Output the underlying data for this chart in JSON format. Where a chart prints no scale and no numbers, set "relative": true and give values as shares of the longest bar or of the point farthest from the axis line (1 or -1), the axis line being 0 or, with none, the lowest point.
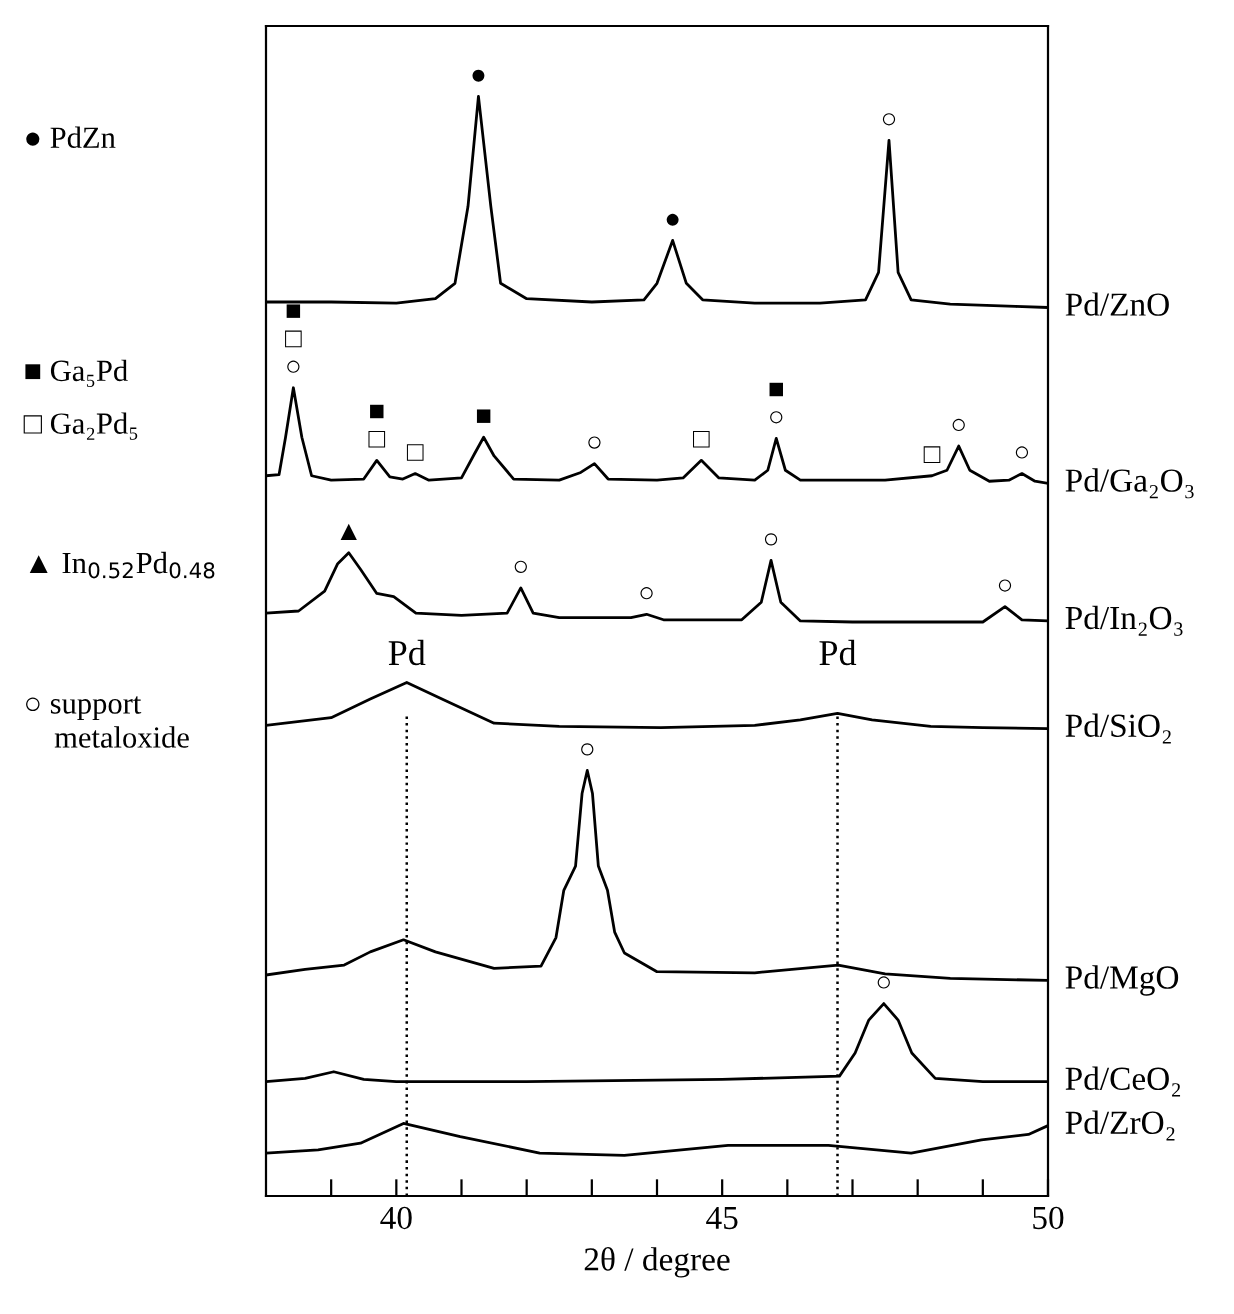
{
  "chart_data": {
    "type": "line",
    "relative": true,
    "xlabel": "2θ / degree",
    "xlim": [
      38,
      50
    ],
    "xticks": [
      {
        "value": 39,
        "label": null
      },
      40,
      {
        "value": 41,
        "label": null
      },
      {
        "value": 42,
        "label": null
      },
      {
        "value": 43,
        "label": null
      },
      {
        "value": 44,
        "label": null
      },
      45,
      {
        "value": 46,
        "label": null
      },
      {
        "value": 47,
        "label": null
      },
      {
        "value": 48,
        "label": null
      },
      {
        "value": 49,
        "label": null
      },
      50
    ],
    "tick_labels": "x",
    "grid": false,
    "legend": false,
    "marker": "none",
    "line_style": "solid",
    "series": [
      {
        "name": "Pd/ZnO",
        "color": "#000000",
        "x": [
          38,
          39,
          40,
          40.6,
          40.9,
          41.1,
          41.26,
          41.45,
          41.6,
          42,
          43,
          43.8,
          44.0,
          44.24,
          44.45,
          44.7,
          45.5,
          46.5,
          47.2,
          47.4,
          47.56,
          47.7,
          47.9,
          48.5,
          49.5,
          50
        ],
        "values": [
          0.813,
          0.813,
          0.812,
          0.816,
          0.83,
          0.9,
          1.0,
          0.9,
          0.83,
          0.816,
          0.813,
          0.815,
          0.83,
          0.869,
          0.83,
          0.815,
          0.812,
          0.812,
          0.815,
          0.84,
          0.96,
          0.84,
          0.815,
          0.811,
          0.809,
          0.808
        ]
      },
      {
        "name": "Pd/Ga₂O₃",
        "color": "#000000",
        "x": [
          38,
          38.2,
          38.3,
          38.42,
          38.55,
          38.7,
          39.0,
          39.5,
          39.7,
          39.9,
          40.1,
          40.29,
          40.5,
          41.0,
          41.2,
          41.34,
          41.5,
          41.8,
          42.5,
          42.83,
          43.04,
          43.25,
          44.0,
          44.4,
          44.68,
          44.95,
          45.5,
          45.7,
          45.83,
          45.97,
          46.2,
          47.5,
          48.22,
          48.45,
          48.63,
          48.8,
          49.1,
          49.4,
          49.6,
          49.8,
          50
        ],
        "values": [
          0.655,
          0.656,
          0.69,
          0.735,
          0.69,
          0.655,
          0.651,
          0.652,
          0.669,
          0.654,
          0.652,
          0.657,
          0.651,
          0.653,
          0.675,
          0.69,
          0.673,
          0.652,
          0.651,
          0.658,
          0.666,
          0.652,
          0.651,
          0.653,
          0.669,
          0.653,
          0.651,
          0.66,
          0.689,
          0.66,
          0.651,
          0.651,
          0.655,
          0.66,
          0.682,
          0.66,
          0.65,
          0.651,
          0.657,
          0.65,
          0.648
        ]
      },
      {
        "name": "Pd/In₂O₃",
        "color": "#000000",
        "x": [
          38,
          38.5,
          38.9,
          39.1,
          39.27,
          39.45,
          39.7,
          39.96,
          40.3,
          41.0,
          41.7,
          41.91,
          42.1,
          42.5,
          43.6,
          43.84,
          44.1,
          45.3,
          45.6,
          45.75,
          45.9,
          46.2,
          47.0,
          49.0,
          49.34,
          49.6,
          50
        ],
        "values": [
          0.53,
          0.532,
          0.55,
          0.575,
          0.585,
          0.57,
          0.548,
          0.545,
          0.53,
          0.528,
          0.53,
          0.553,
          0.53,
          0.526,
          0.526,
          0.529,
          0.524,
          0.524,
          0.54,
          0.578,
          0.54,
          0.523,
          0.522,
          0.522,
          0.536,
          0.524,
          0.523
        ]
      },
      {
        "name": "Pd/SiO₂",
        "color": "#000000",
        "x": [
          38,
          39,
          39.6,
          40.16,
          40.7,
          41.5,
          42.5,
          44.06,
          45.5,
          46.2,
          46.77,
          47.3,
          48.2,
          49,
          50
        ],
        "values": [
          0.428,
          0.435,
          0.452,
          0.467,
          0.452,
          0.43,
          0.427,
          0.426,
          0.428,
          0.433,
          0.439,
          0.433,
          0.427,
          0.426,
          0.425
        ]
      },
      {
        "name": "Pd/MgO",
        "color": "#000000",
        "x": [
          38,
          38.6,
          39.2,
          39.6,
          40.11,
          40.6,
          41.5,
          42.22,
          42.45,
          42.57,
          42.75,
          42.85,
          42.93,
          43.01,
          43.1,
          43.24,
          43.35,
          43.5,
          44.0,
          45.5,
          46.78,
          47.5,
          48.5,
          50
        ],
        "values": [
          0.201,
          0.206,
          0.21,
          0.222,
          0.233,
          0.222,
          0.207,
          0.209,
          0.235,
          0.278,
          0.3,
          0.366,
          0.387,
          0.366,
          0.3,
          0.278,
          0.24,
          0.221,
          0.204,
          0.203,
          0.21,
          0.202,
          0.198,
          0.196
        ]
      },
      {
        "name": "Pd/CeO₂",
        "color": "#000000",
        "x": [
          38,
          38.6,
          39.04,
          39.5,
          40,
          42,
          45,
          46.8,
          47.04,
          47.25,
          47.48,
          47.7,
          47.91,
          48.27,
          49,
          50
        ],
        "values": [
          0.104,
          0.107,
          0.113,
          0.106,
          0.104,
          0.104,
          0.106,
          0.109,
          0.13,
          0.16,
          0.175,
          0.16,
          0.13,
          0.107,
          0.104,
          0.104
        ]
      },
      {
        "name": "Pd/ZrO₂",
        "color": "#000000",
        "x": [
          38,
          38.8,
          39.45,
          40.11,
          40.98,
          42.2,
          43.5,
          45.09,
          46.63,
          47.9,
          48.98,
          49.7,
          50
        ],
        "values": [
          0.039,
          0.042,
          0.048,
          0.066,
          0.054,
          0.039,
          0.037,
          0.046,
          0.046,
          0.039,
          0.051,
          0.056,
          0.064
        ]
      }
    ],
    "ref_lines": [
      {
        "axis": "x",
        "value": 40.16,
        "label": "Pd",
        "color": "#000000",
        "line_style": "dotted"
      },
      {
        "axis": "x",
        "value": 46.77,
        "label": "Pd",
        "color": "#000000",
        "line_style": "dotted"
      }
    ],
    "annotations": [
      "● PdZn",
      "■ Ga₅Pd",
      "□ Ga₂Pd₅",
      "▲ In$_{0.52}$Pd$_{0.48}$",
      "○ support\n    metaloxide",
      {
        "text": "●",
        "x": 41.26,
        "y": 1.0
      },
      {
        "text": "●",
        "x": 44.24,
        "y": 0.869
      },
      {
        "text": "○",
        "x": 47.56,
        "y": 0.96
      },
      {
        "text": "○",
        "x": 38.42,
        "y": 0.735
      },
      {
        "text": "□",
        "x": 38.42,
        "y": 0.735
      },
      {
        "text": "■",
        "x": 38.42,
        "y": 0.735
      },
      {
        "text": "□",
        "x": 39.7,
        "y": 0.669
      },
      {
        "text": "■",
        "x": 39.7,
        "y": 0.669
      },
      {
        "text": "□",
        "x": 40.29,
        "y": 0.657
      },
      {
        "text": "■",
        "x": 41.34,
        "y": 0.69
      },
      {
        "text": "○",
        "x": 43.04,
        "y": 0.666
      },
      {
        "text": "□",
        "x": 44.68,
        "y": 0.669
      },
      {
        "text": "○",
        "x": 45.83,
        "y": 0.689
      },
      {
        "text": "■",
        "x": 45.83,
        "y": 0.689
      },
      {
        "text": "□",
        "x": 48.22,
        "y": 0.655
      },
      {
        "text": "○",
        "x": 48.63,
        "y": 0.682
      },
      {
        "text": "○",
        "x": 49.6,
        "y": 0.657
      },
      {
        "text": "▲",
        "x": 39.27,
        "y": 0.585
      },
      {
        "text": "○",
        "x": 41.91,
        "y": 0.553
      },
      {
        "text": "○",
        "x": 43.84,
        "y": 0.529
      },
      {
        "text": "○",
        "x": 45.75,
        "y": 0.578
      },
      {
        "text": "○",
        "x": 49.34,
        "y": 0.536
      },
      {
        "text": "○",
        "x": 42.93,
        "y": 0.387
      },
      {
        "text": "○",
        "x": 47.48,
        "y": 0.175
      }
    ]
  }
}
